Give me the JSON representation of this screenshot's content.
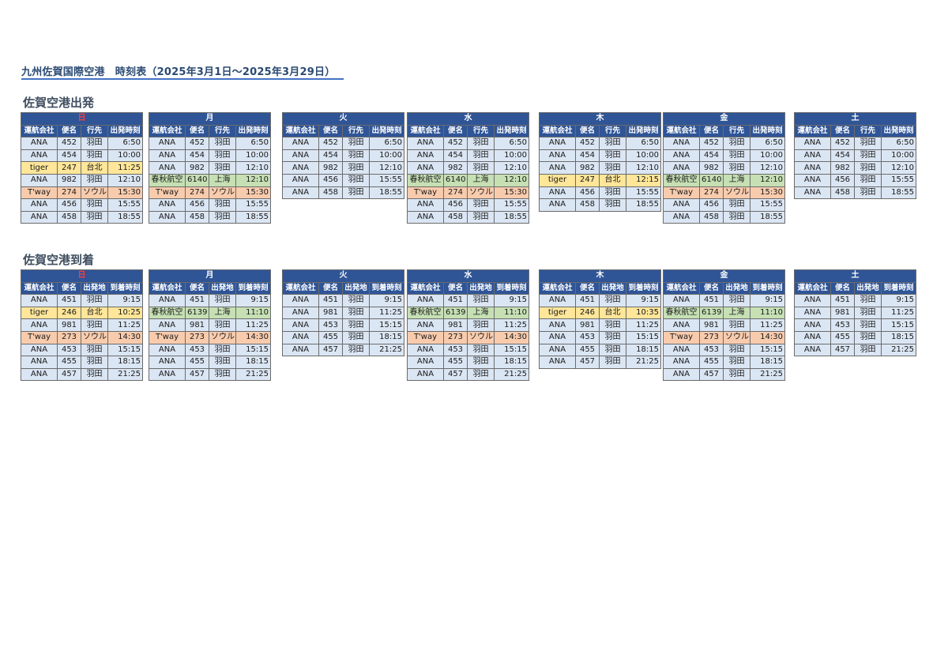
{
  "title": "九州佐賀国際空港　時刻表（2025年3月1日～2025年3月29日）",
  "departures": {
    "title": "佐賀空港出発",
    "headers": [
      "運航会社",
      "便名",
      "行先",
      "出発時刻"
    ],
    "days": [
      {
        "day": "日",
        "rows": [
          [
            "ANA",
            "452",
            "羽田",
            "6:50"
          ],
          [
            "ANA",
            "454",
            "羽田",
            "10:00"
          ],
          [
            "tiger",
            "247",
            "台北",
            "11:25"
          ],
          [
            "ANA",
            "982",
            "羽田",
            "12:10"
          ],
          [
            "T'way",
            "274",
            "ソウル",
            "15:30"
          ],
          [
            "ANA",
            "456",
            "羽田",
            "15:55"
          ],
          [
            "ANA",
            "458",
            "羽田",
            "18:55"
          ]
        ]
      },
      {
        "day": "月",
        "rows": [
          [
            "ANA",
            "452",
            "羽田",
            "6:50"
          ],
          [
            "ANA",
            "454",
            "羽田",
            "10:00"
          ],
          [
            "ANA",
            "982",
            "羽田",
            "12:10"
          ],
          [
            "春秋航空",
            "6140",
            "上海",
            "12:10"
          ],
          [
            "T'way",
            "274",
            "ソウル",
            "15:30"
          ],
          [
            "ANA",
            "456",
            "羽田",
            "15:55"
          ],
          [
            "ANA",
            "458",
            "羽田",
            "18:55"
          ]
        ]
      },
      {
        "day": "火",
        "rows": [
          [
            "ANA",
            "452",
            "羽田",
            "6:50"
          ],
          [
            "ANA",
            "454",
            "羽田",
            "10:00"
          ],
          [
            "ANA",
            "982",
            "羽田",
            "12:10"
          ],
          [
            "ANA",
            "456",
            "羽田",
            "15:55"
          ],
          [
            "ANA",
            "458",
            "羽田",
            "18:55"
          ]
        ]
      },
      {
        "day": "水",
        "rows": [
          [
            "ANA",
            "452",
            "羽田",
            "6:50"
          ],
          [
            "ANA",
            "454",
            "羽田",
            "10:00"
          ],
          [
            "ANA",
            "982",
            "羽田",
            "12:10"
          ],
          [
            "春秋航空",
            "6140",
            "上海",
            "12:10"
          ],
          [
            "T'way",
            "274",
            "ソウル",
            "15:30"
          ],
          [
            "ANA",
            "456",
            "羽田",
            "15:55"
          ],
          [
            "ANA",
            "458",
            "羽田",
            "18:55"
          ]
        ]
      },
      {
        "day": "木",
        "rows": [
          [
            "ANA",
            "452",
            "羽田",
            "6:50"
          ],
          [
            "ANA",
            "454",
            "羽田",
            "10:00"
          ],
          [
            "ANA",
            "982",
            "羽田",
            "12:10"
          ],
          [
            "tiger",
            "247",
            "台北",
            "12:15"
          ],
          [
            "ANA",
            "456",
            "羽田",
            "15:55"
          ],
          [
            "ANA",
            "458",
            "羽田",
            "18:55"
          ]
        ]
      },
      {
        "day": "金",
        "rows": [
          [
            "ANA",
            "452",
            "羽田",
            "6:50"
          ],
          [
            "ANA",
            "454",
            "羽田",
            "10:00"
          ],
          [
            "ANA",
            "982",
            "羽田",
            "12:10"
          ],
          [
            "春秋航空",
            "6140",
            "上海",
            "12:10"
          ],
          [
            "T'way",
            "274",
            "ソウル",
            "15:30"
          ],
          [
            "ANA",
            "456",
            "羽田",
            "15:55"
          ],
          [
            "ANA",
            "458",
            "羽田",
            "18:55"
          ]
        ]
      },
      {
        "day": "土",
        "rows": [
          [
            "ANA",
            "452",
            "羽田",
            "6:50"
          ],
          [
            "ANA",
            "454",
            "羽田",
            "10:00"
          ],
          [
            "ANA",
            "982",
            "羽田",
            "12:10"
          ],
          [
            "ANA",
            "456",
            "羽田",
            "15:55"
          ],
          [
            "ANA",
            "458",
            "羽田",
            "18:55"
          ]
        ]
      }
    ]
  },
  "arrivals": {
    "title": "佐賀空港到着",
    "headers": [
      "運航会社",
      "便名",
      "出発地",
      "到着時刻"
    ],
    "days": [
      {
        "day": "日",
        "rows": [
          [
            "ANA",
            "451",
            "羽田",
            "9:15"
          ],
          [
            "tiger",
            "246",
            "台北",
            "10:25"
          ],
          [
            "ANA",
            "981",
            "羽田",
            "11:25"
          ],
          [
            "T'way",
            "273",
            "ソウル",
            "14:30"
          ],
          [
            "ANA",
            "453",
            "羽田",
            "15:15"
          ],
          [
            "ANA",
            "455",
            "羽田",
            "18:15"
          ],
          [
            "ANA",
            "457",
            "羽田",
            "21:25"
          ]
        ]
      },
      {
        "day": "月",
        "rows": [
          [
            "ANA",
            "451",
            "羽田",
            "9:15"
          ],
          [
            "春秋航空",
            "6139",
            "上海",
            "11:10"
          ],
          [
            "ANA",
            "981",
            "羽田",
            "11:25"
          ],
          [
            "T'way",
            "273",
            "ソウル",
            "14:30"
          ],
          [
            "ANA",
            "453",
            "羽田",
            "15:15"
          ],
          [
            "ANA",
            "455",
            "羽田",
            "18:15"
          ],
          [
            "ANA",
            "457",
            "羽田",
            "21:25"
          ]
        ]
      },
      {
        "day": "火",
        "rows": [
          [
            "ANA",
            "451",
            "羽田",
            "9:15"
          ],
          [
            "ANA",
            "981",
            "羽田",
            "11:25"
          ],
          [
            "ANA",
            "453",
            "羽田",
            "15:15"
          ],
          [
            "ANA",
            "455",
            "羽田",
            "18:15"
          ],
          [
            "ANA",
            "457",
            "羽田",
            "21:25"
          ]
        ]
      },
      {
        "day": "水",
        "rows": [
          [
            "ANA",
            "451",
            "羽田",
            "9:15"
          ],
          [
            "春秋航空",
            "6139",
            "上海",
            "11:10"
          ],
          [
            "ANA",
            "981",
            "羽田",
            "11:25"
          ],
          [
            "T'way",
            "273",
            "ソウル",
            "14:30"
          ],
          [
            "ANA",
            "453",
            "羽田",
            "15:15"
          ],
          [
            "ANA",
            "455",
            "羽田",
            "18:15"
          ],
          [
            "ANA",
            "457",
            "羽田",
            "21:25"
          ]
        ]
      },
      {
        "day": "木",
        "rows": [
          [
            "ANA",
            "451",
            "羽田",
            "9:15"
          ],
          [
            "tiger",
            "246",
            "台北",
            "10:35"
          ],
          [
            "ANA",
            "981",
            "羽田",
            "11:25"
          ],
          [
            "ANA",
            "453",
            "羽田",
            "15:15"
          ],
          [
            "ANA",
            "455",
            "羽田",
            "18:15"
          ],
          [
            "ANA",
            "457",
            "羽田",
            "21:25"
          ]
        ]
      },
      {
        "day": "金",
        "rows": [
          [
            "ANA",
            "451",
            "羽田",
            "9:15"
          ],
          [
            "春秋航空",
            "6139",
            "上海",
            "11:10"
          ],
          [
            "ANA",
            "981",
            "羽田",
            "11:25"
          ],
          [
            "T'way",
            "273",
            "ソウル",
            "14:30"
          ],
          [
            "ANA",
            "453",
            "羽田",
            "15:15"
          ],
          [
            "ANA",
            "455",
            "羽田",
            "18:15"
          ],
          [
            "ANA",
            "457",
            "羽田",
            "21:25"
          ]
        ]
      },
      {
        "day": "土",
        "rows": [
          [
            "ANA",
            "451",
            "羽田",
            "9:15"
          ],
          [
            "ANA",
            "981",
            "羽田",
            "11:25"
          ],
          [
            "ANA",
            "453",
            "羽田",
            "15:15"
          ],
          [
            "ANA",
            "455",
            "羽田",
            "18:15"
          ],
          [
            "ANA",
            "457",
            "羽田",
            "21:25"
          ]
        ]
      }
    ]
  },
  "colors": {
    "header_bg": "#2f5597",
    "sunday_text": "#ff3b3b",
    "ana_row": "#dbe6f4",
    "tiger_row": "#ffe699",
    "tway_row": "#f8cbad",
    "spring_row": "#c6e0b4"
  }
}
